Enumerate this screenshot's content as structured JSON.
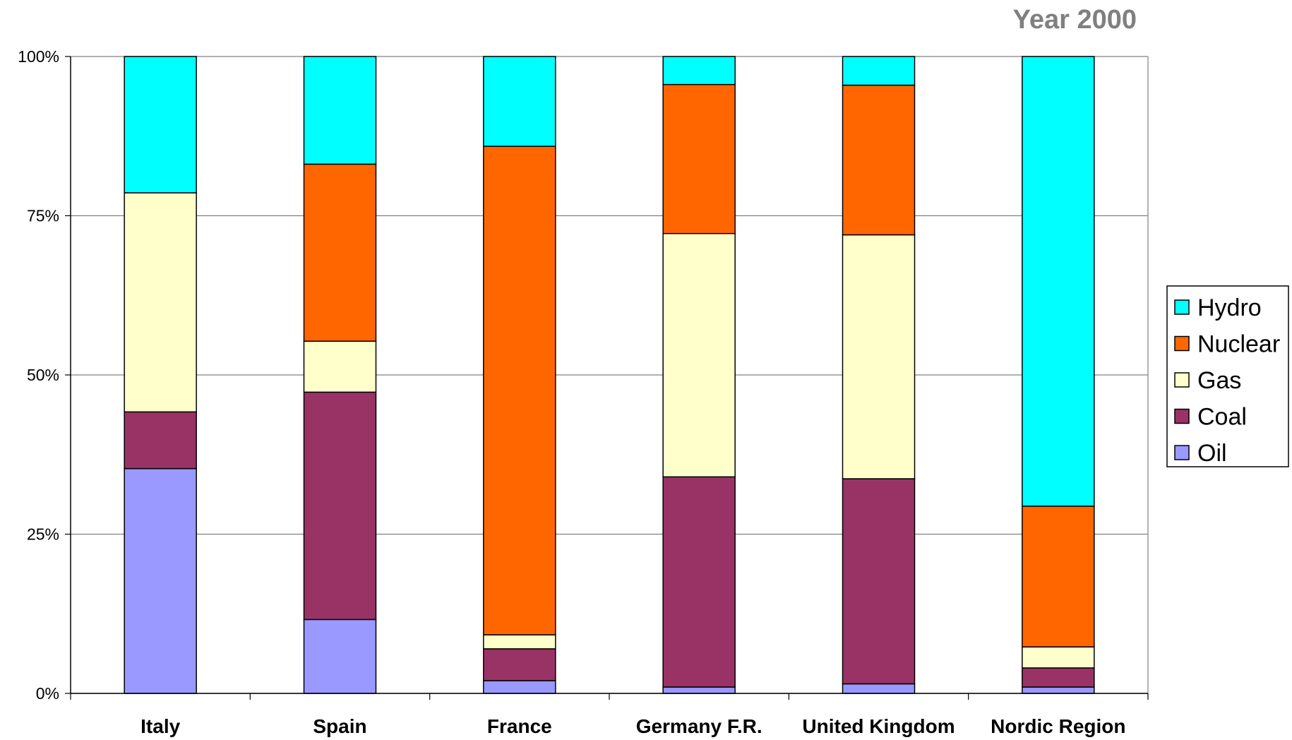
{
  "chart_data": {
    "type": "bar",
    "stacked": "percent",
    "title": "Year 2000",
    "categories": [
      "Italy",
      "Spain",
      "France",
      "Germany F.R.",
      "United Kingdom",
      "Nordic Region"
    ],
    "y_tick_labels": [
      "0%",
      "25%",
      "50%",
      "75%",
      "100%"
    ],
    "ylim": [
      0,
      100
    ],
    "grid": true,
    "legend_position": "right",
    "series": [
      {
        "name": "Oil",
        "color": "#9999ff",
        "values": [
          35.3,
          11.6,
          2.0,
          1.0,
          1.5,
          1.0
        ]
      },
      {
        "name": "Coal",
        "color": "#993366",
        "values": [
          8.9,
          35.7,
          5.0,
          33.0,
          32.2,
          3.0
        ]
      },
      {
        "name": "Gas",
        "color": "#ffffcc",
        "values": [
          34.4,
          8.0,
          2.2,
          38.2,
          38.3,
          3.3
        ]
      },
      {
        "name": "Nuclear",
        "color": "#ff6600",
        "values": [
          0,
          27.8,
          76.7,
          23.4,
          23.5,
          22.1
        ]
      },
      {
        "name": "Hydro",
        "color": "#00ffff",
        "values": [
          21.4,
          16.9,
          14.1,
          4.4,
          4.5,
          70.6
        ]
      }
    ]
  }
}
